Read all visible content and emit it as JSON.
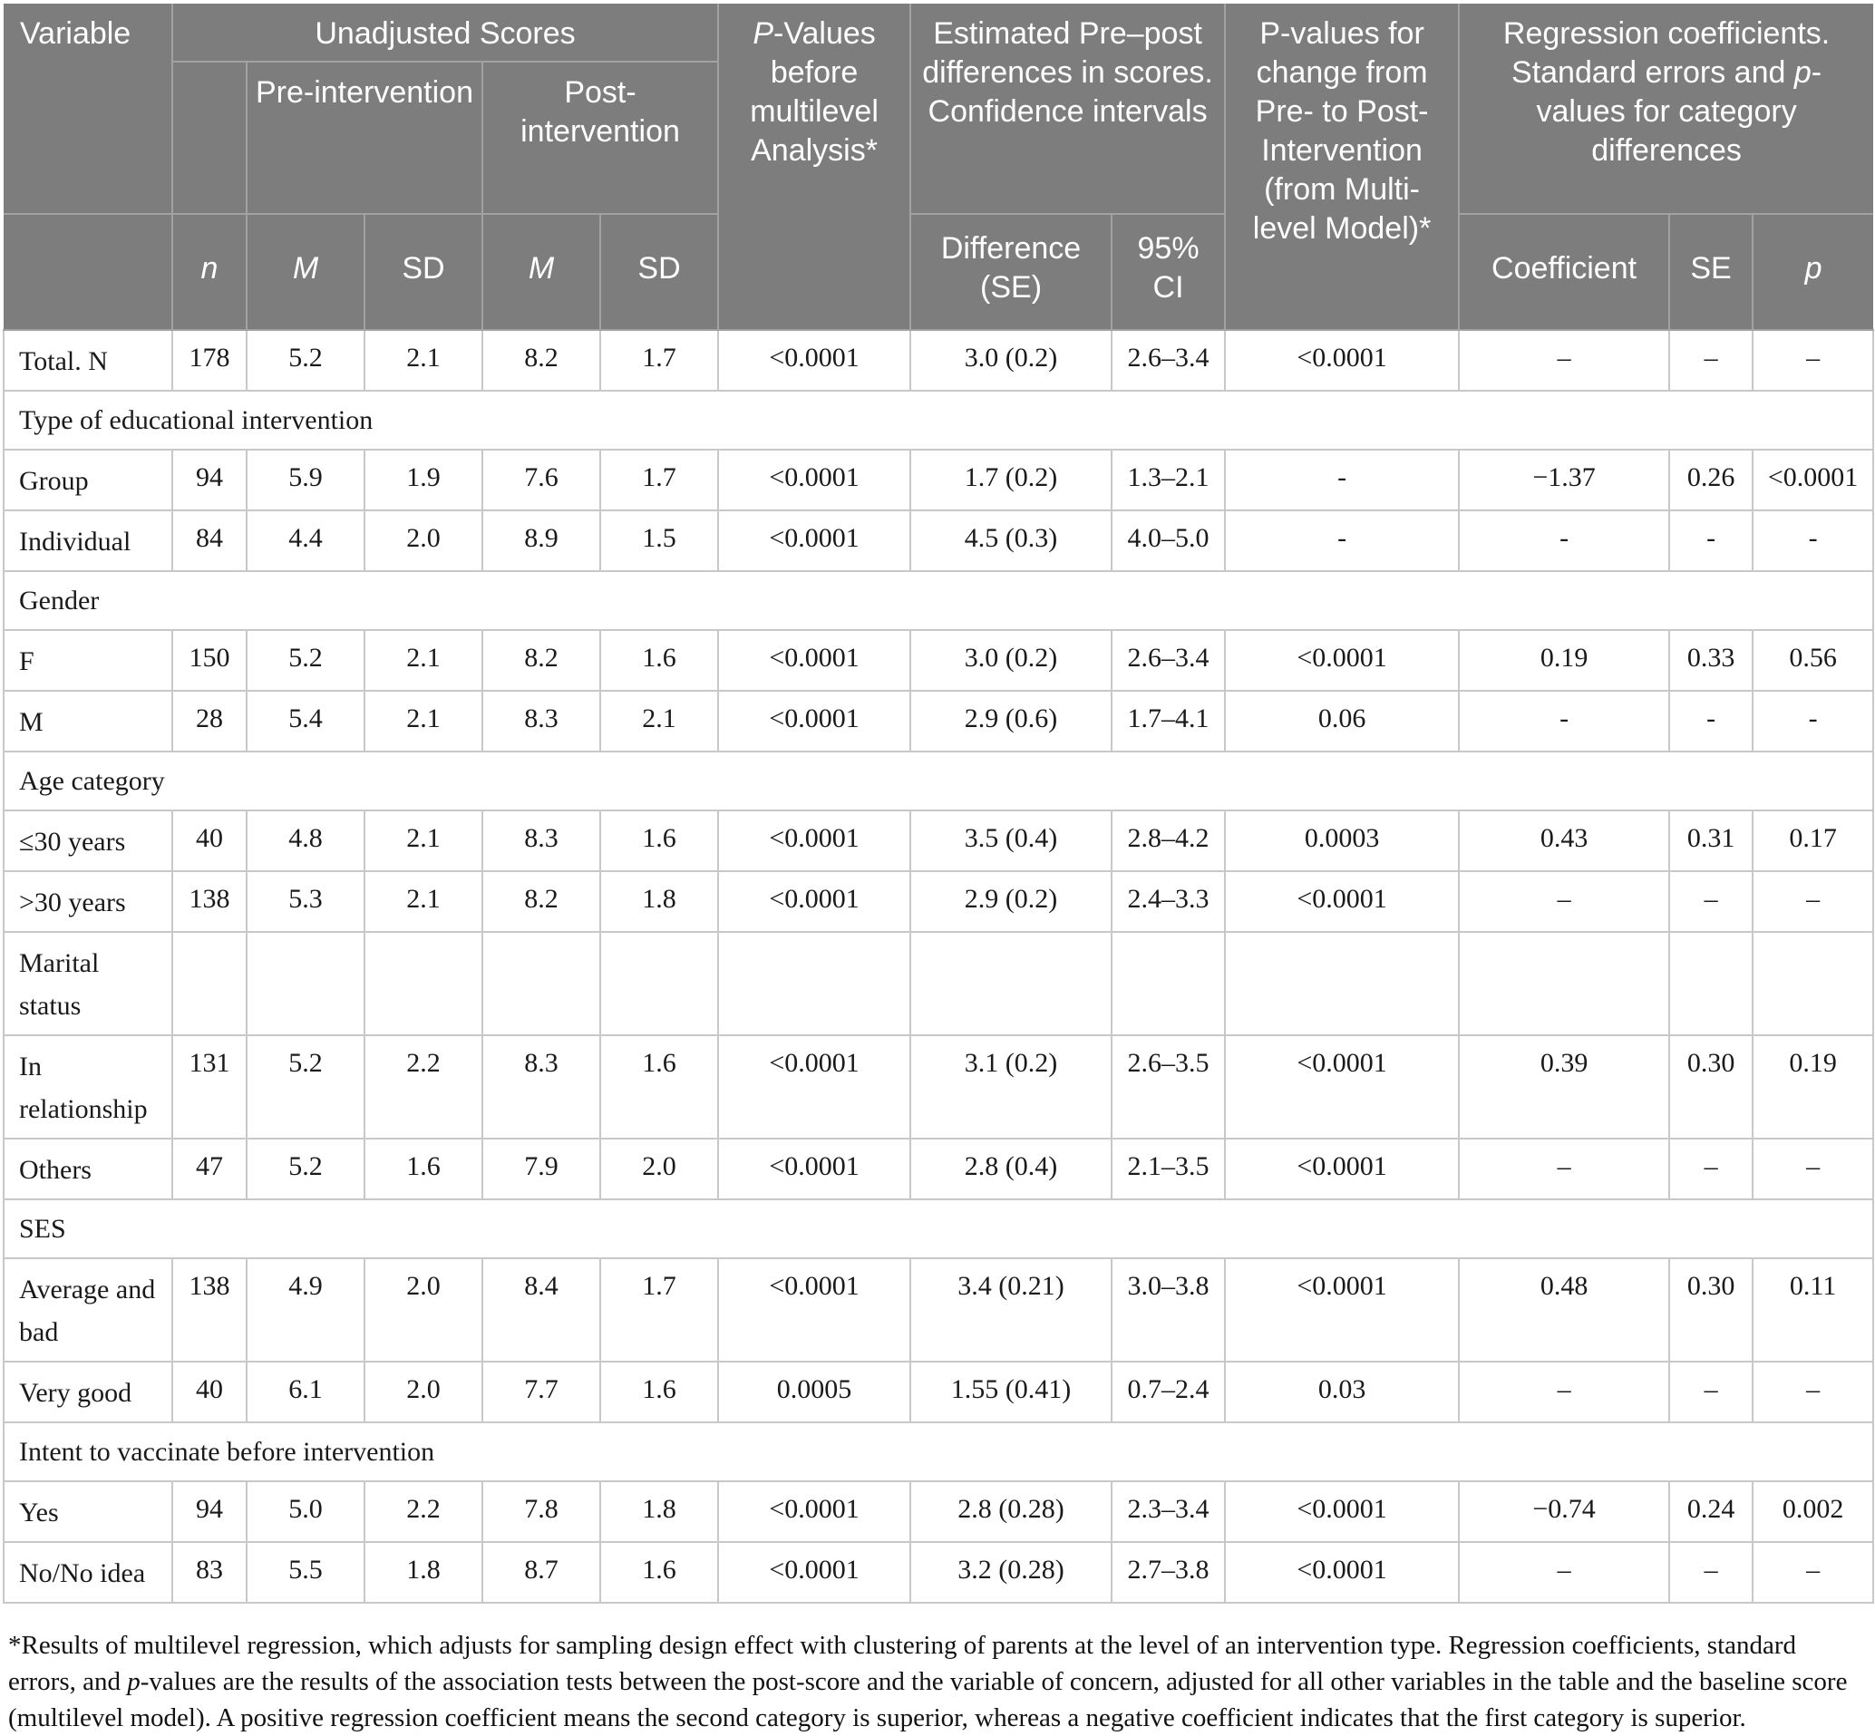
{
  "table": {
    "header": {
      "variable": "Variable",
      "unadjusted": "Unadjusted Scores",
      "pre_intervention": "Pre-intervention",
      "post_intervention": "Post-intervention",
      "p_before": {
        "italic": "P",
        "rest": "-Values before multilevel Analysis*"
      },
      "estimated": "Estimated Pre–post differences in scores. Confidence intervals",
      "p_change": "P-values for change from Pre- to Post-Intervention (from Multi-level Model)*",
      "regression": {
        "part1": "Regression coefficients. Standard errors and ",
        "italic": "p",
        "part2": "-values for category differences"
      },
      "n": "n",
      "pre_m": "M",
      "pre_sd": "SD",
      "post_m": "M",
      "post_sd": "SD",
      "difference_se": "Difference (SE)",
      "ci_95": "95% CI",
      "coefficient": "Coefficient",
      "se": "SE",
      "p": "p"
    },
    "rows": [
      {
        "type": "data",
        "cells": [
          "Total. N",
          "178",
          "5.2",
          "2.1",
          "8.2",
          "1.7",
          "<0.0001",
          "3.0 (0.2)",
          "2.6–3.4",
          "<0.0001",
          "–",
          "–",
          "–"
        ]
      },
      {
        "type": "section",
        "label": "Type of educational intervention"
      },
      {
        "type": "data",
        "cells": [
          "Group",
          "94",
          "5.9",
          "1.9",
          "7.6",
          "1.7",
          "<0.0001",
          "1.7 (0.2)",
          "1.3–2.1",
          "-",
          "−1.37",
          "0.26",
          "<0.0001"
        ]
      },
      {
        "type": "data",
        "cells": [
          "Individual",
          "84",
          "4.4",
          "2.0",
          "8.9",
          "1.5",
          "<0.0001",
          "4.5 (0.3)",
          "4.0–5.0",
          "-",
          "-",
          "-",
          "-"
        ]
      },
      {
        "type": "section",
        "label": "Gender"
      },
      {
        "type": "data",
        "cells": [
          "F",
          "150",
          "5.2",
          "2.1",
          "8.2",
          "1.6",
          "<0.0001",
          "3.0 (0.2)",
          "2.6–3.4",
          "<0.0001",
          "0.19",
          "0.33",
          "0.56"
        ]
      },
      {
        "type": "data",
        "cells": [
          "M",
          "28",
          "5.4",
          "2.1",
          "8.3",
          "2.1",
          "<0.0001",
          "2.9 (0.6)",
          "1.7–4.1",
          "0.06",
          "-",
          "-",
          "-"
        ]
      },
      {
        "type": "section",
        "label": "Age category"
      },
      {
        "type": "data",
        "cells": [
          "≤30 years",
          "40",
          "4.8",
          "2.1",
          "8.3",
          "1.6",
          "<0.0001",
          "3.5 (0.4)",
          "2.8–4.2",
          "0.0003",
          "0.43",
          "0.31",
          "0.17"
        ]
      },
      {
        "type": "data",
        "cells": [
          ">30 years",
          "138",
          "5.3",
          "2.1",
          "8.2",
          "1.8",
          "<0.0001",
          "2.9 (0.2)",
          "2.4–3.3",
          "<0.0001",
          "–",
          "–",
          "–"
        ]
      },
      {
        "type": "data",
        "cells": [
          "Marital status",
          "",
          "",
          "",
          "",
          "",
          "",
          "",
          "",
          "",
          "",
          "",
          ""
        ]
      },
      {
        "type": "data",
        "cells": [
          "In relationship",
          "131",
          "5.2",
          "2.2",
          "8.3",
          "1.6",
          "<0.0001",
          "3.1 (0.2)",
          "2.6–3.5",
          "<0.0001",
          "0.39",
          "0.30",
          "0.19"
        ]
      },
      {
        "type": "data",
        "cells": [
          "Others",
          "47",
          "5.2",
          "1.6",
          "7.9",
          "2.0",
          "<0.0001",
          "2.8 (0.4)",
          "2.1–3.5",
          "<0.0001",
          "–",
          "–",
          "–"
        ]
      },
      {
        "type": "section",
        "label": "SES"
      },
      {
        "type": "data",
        "cells": [
          "Average and bad",
          "138",
          "4.9",
          "2.0",
          "8.4",
          "1.7",
          "<0.0001",
          "3.4 (0.21)",
          "3.0–3.8",
          "<0.0001",
          "0.48",
          "0.30",
          "0.11"
        ]
      },
      {
        "type": "data",
        "cells": [
          "Very good",
          "40",
          "6.1",
          "2.0",
          "7.7",
          "1.6",
          "0.0005",
          "1.55 (0.41)",
          "0.7–2.4",
          "0.03",
          "–",
          "–",
          "–"
        ]
      },
      {
        "type": "section",
        "label": "Intent to vaccinate before intervention"
      },
      {
        "type": "data",
        "cells": [
          "Yes",
          "94",
          "5.0",
          "2.2",
          "7.8",
          "1.8",
          "<0.0001",
          "2.8 (0.28)",
          "2.3–3.4",
          "<0.0001",
          "−0.74",
          "0.24",
          "0.002"
        ]
      },
      {
        "type": "data",
        "cells": [
          "No/No idea",
          "83",
          "5.5",
          "1.8",
          "8.7",
          "1.6",
          "<0.0001",
          "3.2 (0.28)",
          "2.7–3.8",
          "<0.0001",
          "–",
          "–",
          "–"
        ]
      }
    ]
  },
  "footnote": {
    "before_italic": "*Results of multilevel regression, which adjusts for sampling design effect with clustering of parents at the level of an intervention type. Regression coefficients, standard errors, and ",
    "italic": "p",
    "after_italic": "-values are the results of the association tests between the post-score and the variable of concern, adjusted for all other variables in the table and the baseline score (multilevel model). A positive regression coefficient means the second category is superior, whereas a negative coefficient indicates that the first category is superior."
  }
}
